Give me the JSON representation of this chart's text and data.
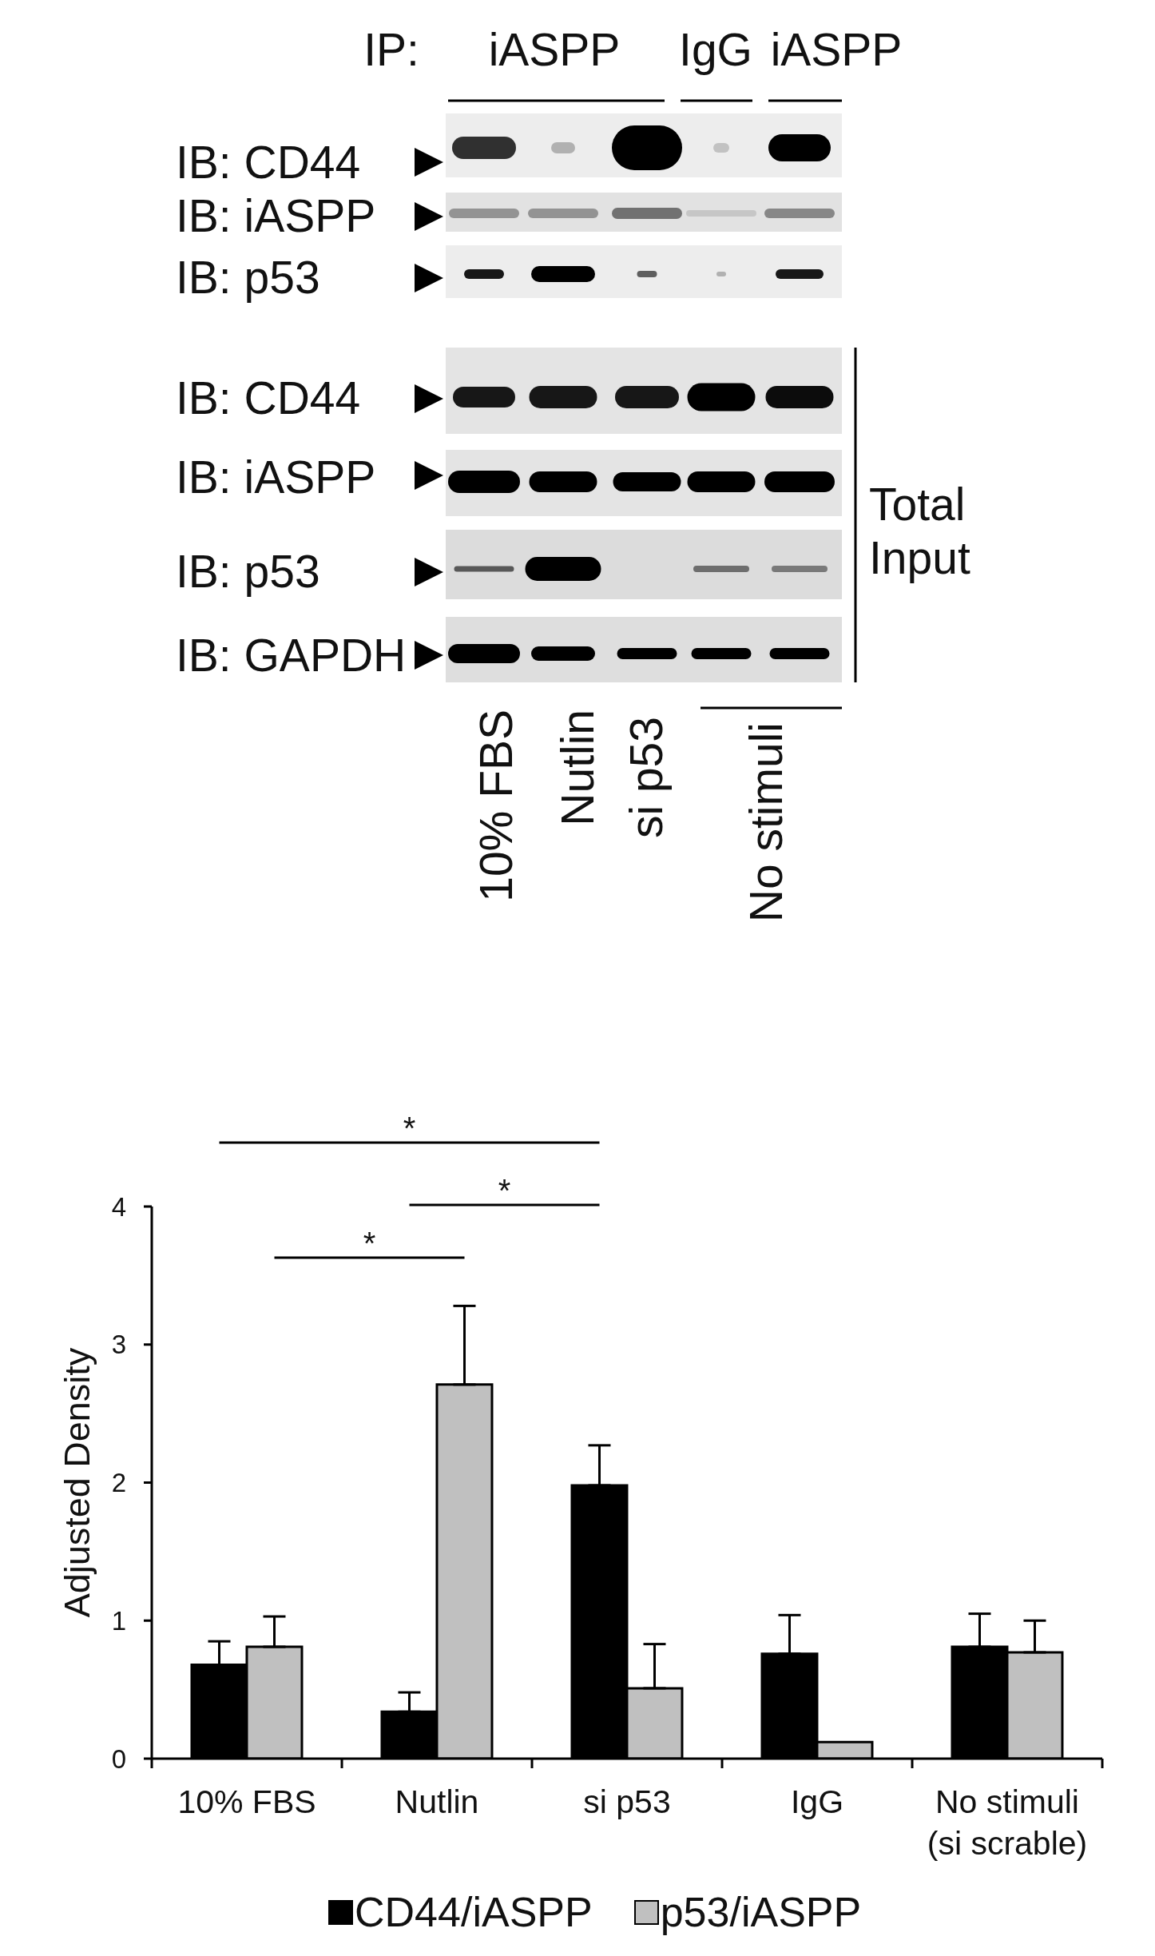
{
  "chart_data": [
    {
      "type": "other",
      "annotations": [
        "IP:",
        "iASPP",
        "IgG",
        "iASPP",
        "IB: CD44",
        "IB: iASPP",
        "IB: p53",
        "IB: CD44",
        "IB: iASPP",
        "IB: p53",
        "IB: GAPDH",
        "Total\nInput",
        "10% FBS",
        "Nutlin",
        "si p53",
        "No stimuli"
      ]
    },
    {
      "type": "bar",
      "ylabel": "Adjusted Density",
      "categories": [
        "10% FBS",
        "Nutlin",
        "si p53",
        "IgG",
        "No stimuli\n(si scrable)"
      ],
      "series": [
        {
          "name": "CD44/iASPP",
          "color": "#000000",
          "values": [
            0.68,
            0.34,
            1.98,
            0.76,
            0.81
          ],
          "errors": [
            [
              0.68,
              0.85
            ],
            [
              0.34,
              0.48
            ],
            [
              1.98,
              2.27
            ],
            [
              0.76,
              1.04
            ],
            [
              0.81,
              1.05
            ]
          ]
        },
        {
          "name": "p53/iASPP",
          "color": "#c0c0c0",
          "values": [
            0.81,
            2.71,
            0.51,
            0.12,
            0.77
          ],
          "errors": [
            [
              0.81,
              1.03
            ],
            [
              2.71,
              3.28
            ],
            [
              0.51,
              0.83
            ],
            null,
            [
              0.77,
              1.0
            ]
          ]
        }
      ],
      "ylim": [
        0,
        4
      ],
      "yticks": [
        0,
        1,
        2,
        3,
        4
      ],
      "legend": "bottom",
      "annotations": [
        "*",
        "*",
        "*"
      ]
    }
  ]
}
